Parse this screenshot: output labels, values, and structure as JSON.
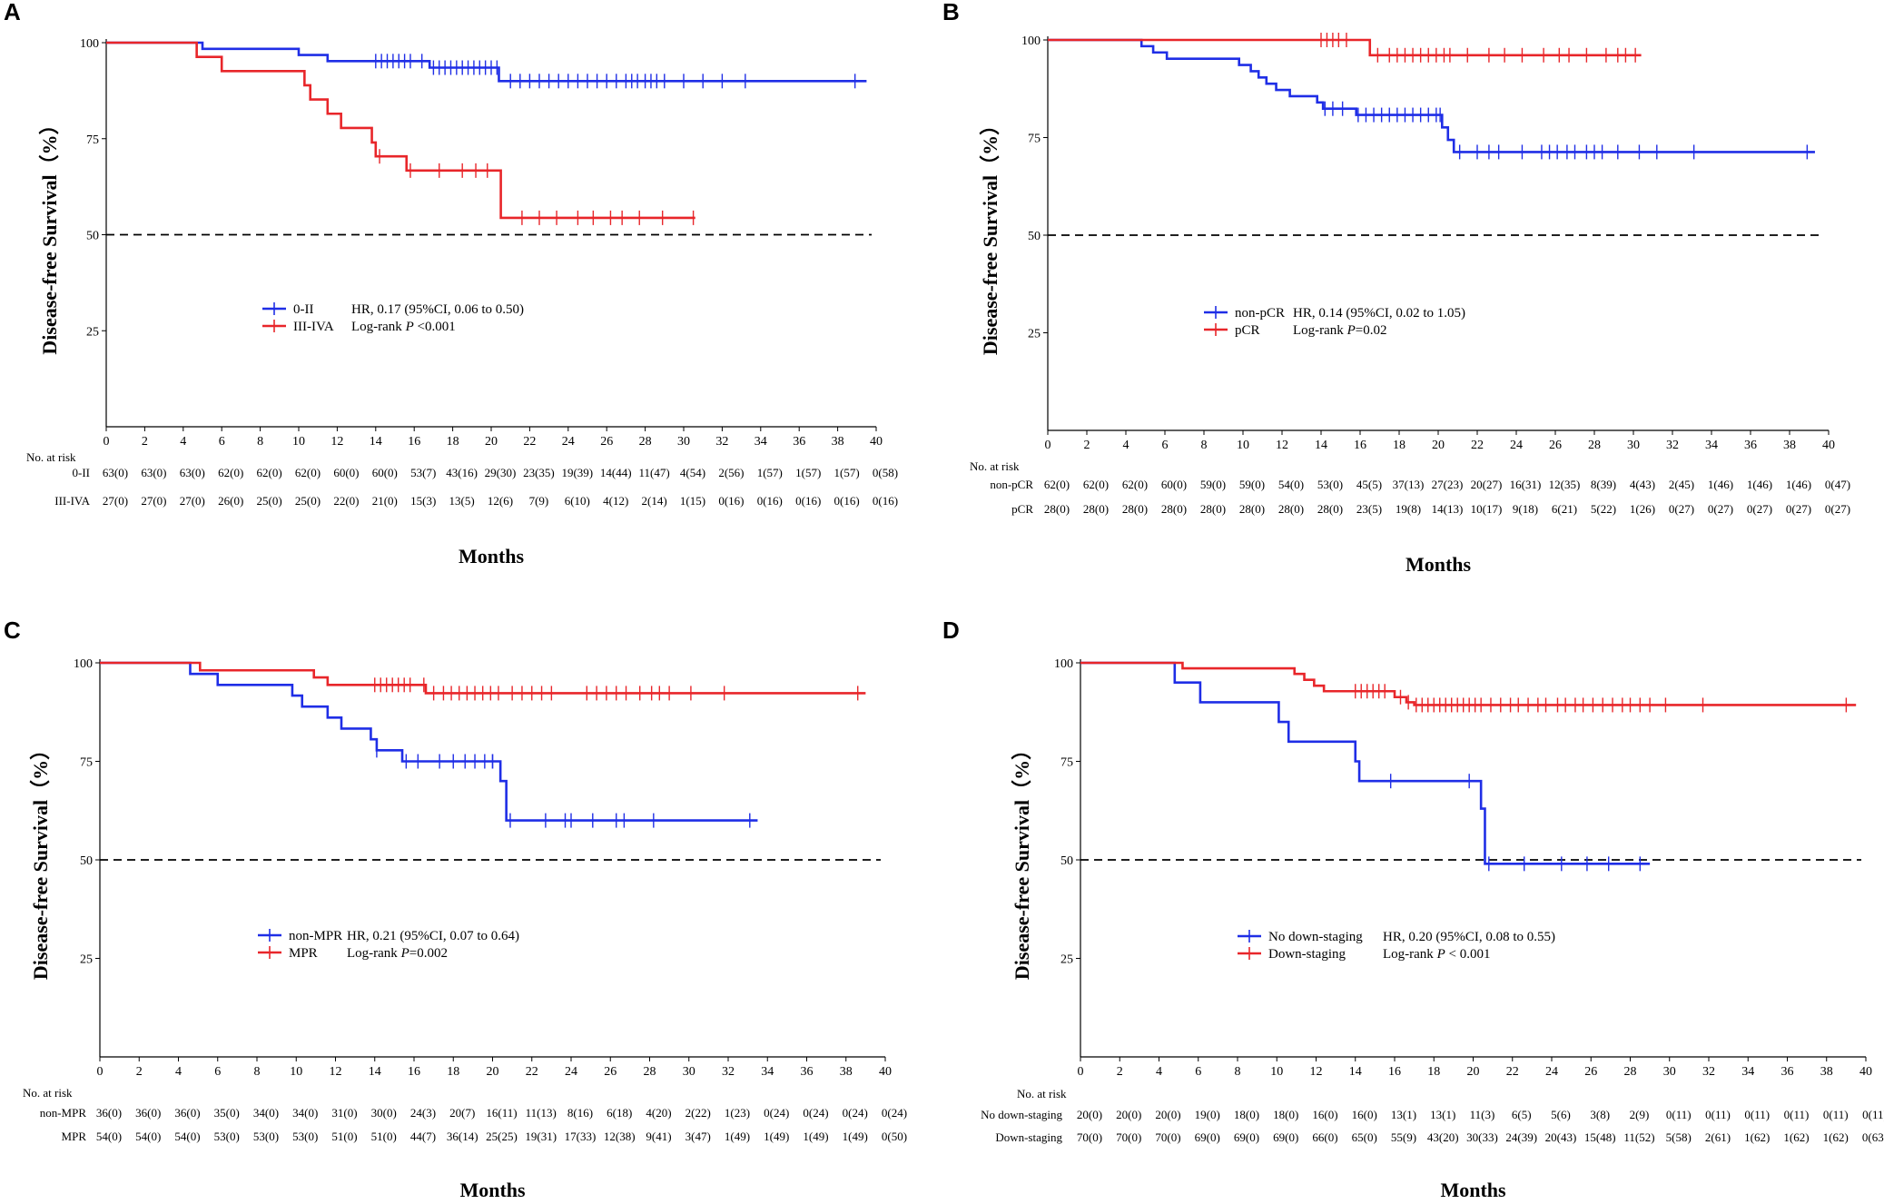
{
  "figure": {
    "colors": {
      "blue": "#1f2ee6",
      "red": "#e8262a",
      "black": "#000000"
    }
  },
  "chart_data": [
    {
      "type": "line",
      "panel": "A",
      "xlabel": "Months",
      "ylabel": "Disease-free Survival（%）",
      "xlim": [
        0,
        40
      ],
      "ylim": [
        0,
        100
      ],
      "xticks": [
        0,
        2,
        4,
        6,
        8,
        10,
        12,
        14,
        16,
        18,
        20,
        22,
        24,
        26,
        28,
        30,
        32,
        34,
        36,
        38,
        40
      ],
      "yticks": [
        25,
        50,
        75,
        100
      ],
      "reference_line": 50,
      "hr_text": "HR, 0.17 (95%CI, 0.06 to 0.50)",
      "pvalue_prefix": "Log-rank ",
      "pvalue_p": "P",
      "pvalue_rest": " <0.001",
      "risk_header": "No. at risk",
      "series": [
        {
          "name": "0-II",
          "color": "blue",
          "steps": [
            [
              0,
              100
            ],
            [
              5,
              98.4
            ],
            [
              10,
              96.8
            ],
            [
              11.5,
              95.2
            ],
            [
              16.8,
              93.5
            ],
            [
              20.4,
              90
            ],
            [
              39.5,
              90
            ]
          ],
          "censors": [
            14,
            14.3,
            14.6,
            14.9,
            15.2,
            15.5,
            15.8,
            16.4,
            17,
            17.3,
            17.6,
            17.9,
            18.2,
            18.5,
            18.8,
            19.1,
            19.4,
            19.7,
            20,
            20.3,
            21,
            21.5,
            22,
            22.5,
            23,
            23.5,
            24,
            24.5,
            25,
            25.5,
            26,
            26.5,
            27,
            27.3,
            27.6,
            28,
            28.3,
            28.6,
            29,
            30,
            31,
            32,
            33.2,
            38.9
          ],
          "risk": [
            "63(0)",
            "63(0)",
            "63(0)",
            "62(0)",
            "62(0)",
            "62(0)",
            "60(0)",
            "60(0)",
            "53(7)",
            "43(16)",
            "29(30)",
            "23(35)",
            "19(39)",
            "14(44)",
            "11(47)",
            "4(54)",
            "2(56)",
            "1(57)",
            "1(57)",
            "1(57)",
            "0(58)"
          ]
        },
        {
          "name": "III-IVA",
          "color": "red",
          "steps": [
            [
              0,
              100
            ],
            [
              4.7,
              96.3
            ],
            [
              6,
              92.6
            ],
            [
              10.3,
              88.9
            ],
            [
              10.6,
              85.2
            ],
            [
              11.5,
              81.5
            ],
            [
              12.2,
              77.8
            ],
            [
              13.8,
              74
            ],
            [
              14,
              70.4
            ],
            [
              15.6,
              66.7
            ],
            [
              20.5,
              54.4
            ],
            [
              30.6,
              54.4
            ]
          ],
          "censors": [
            14.2,
            15.8,
            17.3,
            18.5,
            19.2,
            19.8,
            21.6,
            22.5,
            23.4,
            24.5,
            25.3,
            26.2,
            26.8,
            27.7,
            28.9,
            30.5
          ],
          "risk": [
            "27(0)",
            "27(0)",
            "27(0)",
            "26(0)",
            "25(0)",
            "25(0)",
            "22(0)",
            "21(0)",
            "15(3)",
            "13(5)",
            "12(6)",
            "7(9)",
            "6(10)",
            "4(12)",
            "2(14)",
            "1(15)",
            "0(16)",
            "0(16)",
            "0(16)",
            "0(16)",
            "0(16)"
          ]
        }
      ]
    },
    {
      "type": "line",
      "panel": "B",
      "xlabel": "Months",
      "ylabel": "Disease-free Survival（%）",
      "xlim": [
        0,
        40
      ],
      "ylim": [
        0,
        100
      ],
      "xticks": [
        0,
        2,
        4,
        6,
        8,
        10,
        12,
        14,
        16,
        18,
        20,
        22,
        24,
        26,
        28,
        30,
        32,
        34,
        36,
        38,
        40
      ],
      "yticks": [
        25,
        50,
        75,
        100
      ],
      "reference_line": 50,
      "hr_text": "HR, 0.14 (95%CI, 0.02 to 1.05)",
      "pvalue_prefix": "Log-rank ",
      "pvalue_p": "P",
      "pvalue_rest": "=0.02",
      "risk_header": "No. at risk",
      "series": [
        {
          "name": "non-pCR",
          "color": "blue",
          "steps": [
            [
              0,
              100
            ],
            [
              4.8,
              98.4
            ],
            [
              5.4,
              96.8
            ],
            [
              6.1,
              95.2
            ],
            [
              9.8,
              93.6
            ],
            [
              10.4,
              92
            ],
            [
              10.8,
              90.4
            ],
            [
              11.2,
              88.8
            ],
            [
              11.7,
              87.2
            ],
            [
              12.4,
              85.6
            ],
            [
              13.8,
              84
            ],
            [
              14.1,
              82.4
            ],
            [
              15.8,
              80.8
            ],
            [
              20.2,
              77.6
            ],
            [
              20.5,
              74.4
            ],
            [
              20.8,
              71.3
            ],
            [
              39.3,
              71.3
            ]
          ],
          "censors": [
            14.2,
            14.6,
            15.1,
            15.9,
            16.3,
            16.7,
            17.1,
            17.5,
            17.9,
            18.3,
            18.7,
            19.1,
            19.5,
            19.9,
            20.1,
            21.1,
            22,
            22.6,
            23.1,
            24.3,
            25.3,
            25.7,
            26.1,
            26.6,
            27,
            27.6,
            28,
            28.4,
            29.2,
            30.3,
            31.2,
            33.1,
            38.9
          ],
          "risk": [
            "62(0)",
            "62(0)",
            "62(0)",
            "60(0)",
            "59(0)",
            "59(0)",
            "54(0)",
            "53(0)",
            "45(5)",
            "37(13)",
            "27(23)",
            "20(27)",
            "16(31)",
            "12(35)",
            "8(39)",
            "4(43)",
            "2(45)",
            "1(46)",
            "1(46)",
            "1(46)",
            "0(47)"
          ]
        },
        {
          "name": "pCR",
          "color": "red",
          "steps": [
            [
              0,
              100
            ],
            [
              16.5,
              96.1
            ],
            [
              30.4,
              96.1
            ]
          ],
          "censors": [
            14,
            14.3,
            14.6,
            14.9,
            15.3,
            16.9,
            17.5,
            17.9,
            18.3,
            18.7,
            19.1,
            19.5,
            19.9,
            20.3,
            20.6,
            21.5,
            22.6,
            23.4,
            24.3,
            25.4,
            26.2,
            26.7,
            27.6,
            28.6,
            29.2,
            29.6,
            30.1
          ],
          "risk": [
            "28(0)",
            "28(0)",
            "28(0)",
            "28(0)",
            "28(0)",
            "28(0)",
            "28(0)",
            "28(0)",
            "23(5)",
            "19(8)",
            "14(13)",
            "10(17)",
            "9(18)",
            "6(21)",
            "5(22)",
            "1(26)",
            "0(27)",
            "0(27)",
            "0(27)",
            "0(27)",
            "0(27)"
          ]
        }
      ]
    },
    {
      "type": "line",
      "panel": "C",
      "xlabel": "Months",
      "ylabel": "Disease-free Survival（%）",
      "xlim": [
        0,
        40
      ],
      "ylim": [
        0,
        100
      ],
      "xticks": [
        0,
        2,
        4,
        6,
        8,
        10,
        12,
        14,
        16,
        18,
        20,
        22,
        24,
        26,
        28,
        30,
        32,
        34,
        36,
        38,
        40
      ],
      "yticks": [
        25,
        50,
        75,
        100
      ],
      "reference_line": 50,
      "hr_text": "HR, 0.21 (95%CI, 0.07 to 0.64)",
      "pvalue_prefix": "Log-rank ",
      "pvalue_p": "P",
      "pvalue_rest": "=0.002",
      "risk_header": "No. at risk",
      "series": [
        {
          "name": "non-MPR",
          "color": "blue",
          "steps": [
            [
              0,
              100
            ],
            [
              4.6,
              97.2
            ],
            [
              6,
              94.4
            ],
            [
              9.8,
              91.7
            ],
            [
              10.3,
              88.9
            ],
            [
              11.6,
              86.1
            ],
            [
              12.3,
              83.3
            ],
            [
              13.8,
              80.6
            ],
            [
              14.1,
              77.8
            ],
            [
              15.4,
              75
            ],
            [
              20.4,
              70
            ],
            [
              20.7,
              60
            ],
            [
              33.5,
              60
            ]
          ],
          "censors": [
            14.1,
            15.6,
            16.2,
            17.3,
            18,
            18.6,
            19.1,
            19.6,
            20,
            20,
            20.9,
            22.7,
            23.7,
            24,
            25.1,
            26.3,
            26.7,
            28.2,
            33.1
          ],
          "risk": [
            "36(0)",
            "36(0)",
            "36(0)",
            "35(0)",
            "34(0)",
            "34(0)",
            "31(0)",
            "30(0)",
            "24(3)",
            "20(7)",
            "16(11)",
            "11(13)",
            "8(16)",
            "6(18)",
            "4(20)",
            "2(22)",
            "1(23)",
            "0(24)",
            "0(24)",
            "0(24)",
            "0(24)"
          ]
        },
        {
          "name": "MPR",
          "color": "red",
          "steps": [
            [
              0,
              100
            ],
            [
              5.1,
              98.1
            ],
            [
              10.9,
              96.3
            ],
            [
              11.6,
              94.4
            ],
            [
              16.6,
              92.3
            ],
            [
              39,
              92.3
            ]
          ],
          "censors": [
            14,
            14.3,
            14.6,
            14.9,
            15.2,
            15.5,
            15.8,
            16.5,
            17,
            17.5,
            17.9,
            18.3,
            18.7,
            19.1,
            19.5,
            19.9,
            20.3,
            21,
            21.5,
            22,
            22.5,
            23,
            24.8,
            25.3,
            25.8,
            26.3,
            26.8,
            27.5,
            28.1,
            28.5,
            29,
            30.1,
            31.8,
            38.6
          ],
          "risk": [
            "54(0)",
            "54(0)",
            "54(0)",
            "53(0)",
            "53(0)",
            "53(0)",
            "51(0)",
            "51(0)",
            "44(7)",
            "36(14)",
            "25(25)",
            "19(31)",
            "17(33)",
            "12(38)",
            "9(41)",
            "3(47)",
            "1(49)",
            "1(49)",
            "1(49)",
            "1(49)",
            "0(50)"
          ]
        }
      ]
    },
    {
      "type": "line",
      "panel": "D",
      "xlabel": "Months",
      "ylabel": "Disease-free Survival（%）",
      "xlim": [
        0,
        40
      ],
      "ylim": [
        0,
        100
      ],
      "xticks": [
        0,
        2,
        4,
        6,
        8,
        10,
        12,
        14,
        16,
        18,
        20,
        22,
        24,
        26,
        28,
        30,
        32,
        34,
        36,
        38,
        40
      ],
      "yticks": [
        25,
        50,
        75,
        100
      ],
      "reference_line": 50,
      "hr_text": "HR, 0.20 (95%CI, 0.08 to 0.55)",
      "pvalue_prefix": "Log-rank ",
      "pvalue_p": "P",
      "pvalue_rest": " < 0.001",
      "risk_header": "No. at risk",
      "series": [
        {
          "name": "No down-staging",
          "color": "blue",
          "steps": [
            [
              0,
              100
            ],
            [
              4.8,
              95
            ],
            [
              6.1,
              90
            ],
            [
              10.1,
              85
            ],
            [
              10.6,
              80
            ],
            [
              14,
              75
            ],
            [
              14.2,
              70
            ],
            [
              20.4,
              63
            ],
            [
              20.6,
              49
            ],
            [
              29,
              49
            ]
          ],
          "censors": [
            15.8,
            19.8,
            20.8,
            22.6,
            24.5,
            25.8,
            26.9,
            28.5
          ],
          "risk": [
            "20(0)",
            "20(0)",
            "20(0)",
            "19(0)",
            "18(0)",
            "18(0)",
            "16(0)",
            "16(0)",
            "13(1)",
            "13(1)",
            "11(3)",
            "6(5)",
            "5(6)",
            "3(8)",
            "2(9)",
            "0(11)",
            "0(11)",
            "0(11)",
            "0(11)",
            "0(11)",
            "0(11)"
          ]
        },
        {
          "name": "Down-staging",
          "color": "red",
          "steps": [
            [
              0,
              100
            ],
            [
              5.2,
              98.6
            ],
            [
              10.9,
              97.2
            ],
            [
              11.4,
              95.7
            ],
            [
              11.9,
              94.2
            ],
            [
              12.4,
              92.8
            ],
            [
              16,
              91.3
            ],
            [
              16.6,
              90
            ],
            [
              17,
              89.3
            ],
            [
              39.5,
              89.3
            ]
          ],
          "censors": [
            14,
            14.3,
            14.6,
            14.9,
            15.2,
            15.5,
            16.3,
            16.7,
            17.1,
            17.4,
            17.7,
            18,
            18.3,
            18.6,
            18.9,
            19.2,
            19.5,
            19.8,
            20.1,
            20.4,
            20.9,
            21.4,
            21.9,
            22.3,
            22.8,
            23.3,
            23.7,
            24.3,
            24.7,
            25.2,
            25.6,
            26.1,
            26.6,
            27.1,
            27.6,
            28,
            28.5,
            29,
            29.8,
            31.7,
            39
          ],
          "risk": [
            "70(0)",
            "70(0)",
            "70(0)",
            "69(0)",
            "69(0)",
            "69(0)",
            "66(0)",
            "65(0)",
            "55(9)",
            "43(20)",
            "30(33)",
            "24(39)",
            "20(43)",
            "15(48)",
            "11(52)",
            "5(58)",
            "2(61)",
            "1(62)",
            "1(62)",
            "1(62)",
            "0(63)"
          ]
        }
      ]
    }
  ]
}
